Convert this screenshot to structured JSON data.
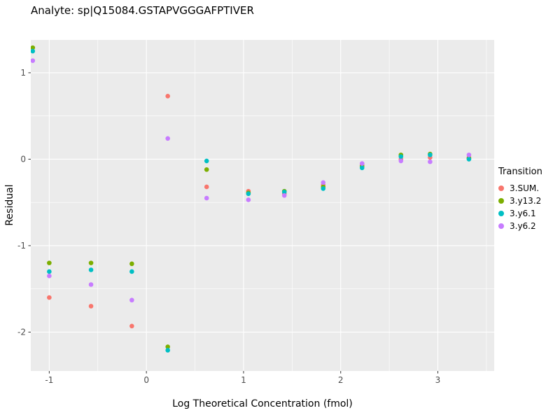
{
  "title": "Analyte: sp|Q15084.GSTAPVGGGAFPTIVER",
  "chart_data": {
    "type": "scatter",
    "title": "Analyte: sp|Q15084.GSTAPVGGGAFPTIVER",
    "xlabel": "Log Theoretical Concentration (fmol)",
    "ylabel": "Residual",
    "xlim": [
      -1.19,
      3.58
    ],
    "ylim": [
      -2.45,
      1.38
    ],
    "x_ticks": [
      -1,
      0,
      1,
      2,
      3
    ],
    "y_ticks": [
      1,
      0,
      -1,
      -2
    ],
    "grid": "major+minor",
    "panel_background": "#EBEBEB",
    "grid_color": "#FFFFFF",
    "tick_label_color": "#4D4D4D",
    "legend_title": "Transition",
    "legend_position": "right",
    "x": [
      -1.17,
      -1.0,
      -0.57,
      -0.15,
      0.22,
      0.62,
      1.05,
      1.42,
      1.82,
      2.22,
      2.62,
      2.92,
      3.32
    ],
    "series": [
      {
        "name": "3.SUM.",
        "color": "#F8766D",
        "values": [
          null,
          -1.6,
          -1.7,
          -1.93,
          0.73,
          -0.32,
          -0.37,
          -0.4,
          -0.3,
          -0.06,
          0.0,
          0.02,
          0.02
        ]
      },
      {
        "name": "3.y13.2",
        "color": "#7CAE00",
        "values": [
          1.29,
          -1.2,
          -1.2,
          -1.21,
          -2.17,
          -0.12,
          -0.39,
          -0.37,
          -0.32,
          -0.08,
          0.05,
          0.06,
          0.01
        ]
      },
      {
        "name": "3.y6.1",
        "color": "#00BFC4",
        "values": [
          1.25,
          -1.3,
          -1.28,
          -1.3,
          -2.21,
          -0.02,
          -0.4,
          -0.38,
          -0.34,
          -0.1,
          0.03,
          0.05,
          0.0
        ]
      },
      {
        "name": "3.y6.2",
        "color": "#C77CFF",
        "values": [
          1.14,
          -1.35,
          -1.45,
          -1.63,
          0.24,
          -0.45,
          -0.47,
          -0.42,
          -0.27,
          -0.05,
          -0.02,
          -0.03,
          0.05
        ]
      }
    ]
  }
}
